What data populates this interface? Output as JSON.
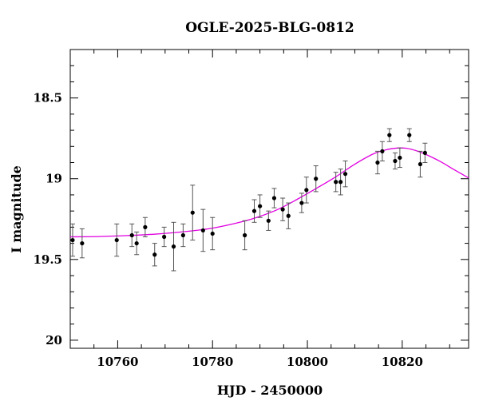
{
  "chart_data": {
    "type": "scatter",
    "title": "OGLE-2025-BLG-0812",
    "xlabel": "HJD - 2450000",
    "ylabel": "I magnitude",
    "xlim": [
      10750,
      10834
    ],
    "ylim": [
      20.05,
      18.2
    ],
    "y_inverted": true,
    "xticks": [
      10760,
      10780,
      10800,
      10820
    ],
    "yticks": [
      18.5,
      19,
      19.5,
      20
    ],
    "ytick_labels": [
      "18.5",
      "19",
      "19.5",
      "20"
    ],
    "grid": false,
    "points": [
      {
        "x": 10750.5,
        "y": 19.38,
        "err": 0.1
      },
      {
        "x": 10752.5,
        "y": 19.4,
        "err": 0.09
      },
      {
        "x": 10759.8,
        "y": 19.38,
        "err": 0.1
      },
      {
        "x": 10763.0,
        "y": 19.35,
        "err": 0.07
      },
      {
        "x": 10764.0,
        "y": 19.4,
        "err": 0.07
      },
      {
        "x": 10765.8,
        "y": 19.3,
        "err": 0.06
      },
      {
        "x": 10767.8,
        "y": 19.47,
        "err": 0.07
      },
      {
        "x": 10769.8,
        "y": 19.36,
        "err": 0.06
      },
      {
        "x": 10771.8,
        "y": 19.42,
        "err": 0.15
      },
      {
        "x": 10773.8,
        "y": 19.35,
        "err": 0.07
      },
      {
        "x": 10775.8,
        "y": 19.21,
        "err": 0.17
      },
      {
        "x": 10778.0,
        "y": 19.32,
        "err": 0.13
      },
      {
        "x": 10780.0,
        "y": 19.34,
        "err": 0.1
      },
      {
        "x": 10786.8,
        "y": 19.35,
        "err": 0.09
      },
      {
        "x": 10788.8,
        "y": 19.2,
        "err": 0.07
      },
      {
        "x": 10790.0,
        "y": 19.17,
        "err": 0.07
      },
      {
        "x": 10791.8,
        "y": 19.26,
        "err": 0.06
      },
      {
        "x": 10793.0,
        "y": 19.12,
        "err": 0.06
      },
      {
        "x": 10794.8,
        "y": 19.19,
        "err": 0.07
      },
      {
        "x": 10796.0,
        "y": 19.23,
        "err": 0.08
      },
      {
        "x": 10798.8,
        "y": 19.15,
        "err": 0.06
      },
      {
        "x": 10799.8,
        "y": 19.07,
        "err": 0.08
      },
      {
        "x": 10801.8,
        "y": 19.0,
        "err": 0.08
      },
      {
        "x": 10806.0,
        "y": 19.02,
        "err": 0.06
      },
      {
        "x": 10807.0,
        "y": 19.02,
        "err": 0.08
      },
      {
        "x": 10808.0,
        "y": 18.97,
        "err": 0.08
      },
      {
        "x": 10814.8,
        "y": 18.9,
        "err": 0.07
      },
      {
        "x": 10815.8,
        "y": 18.83,
        "err": 0.06
      },
      {
        "x": 10817.3,
        "y": 18.73,
        "err": 0.04
      },
      {
        "x": 10818.5,
        "y": 18.89,
        "err": 0.05
      },
      {
        "x": 10819.5,
        "y": 18.87,
        "err": 0.06
      },
      {
        "x": 10821.5,
        "y": 18.73,
        "err": 0.04
      },
      {
        "x": 10823.8,
        "y": 18.91,
        "err": 0.08
      },
      {
        "x": 10824.8,
        "y": 18.84,
        "err": 0.06
      }
    ],
    "model_curve": {
      "color": "#e000e0",
      "x": [
        10750,
        10756,
        10762,
        10768,
        10774,
        10780,
        10786,
        10790,
        10794,
        10798,
        10802,
        10806,
        10810,
        10814,
        10817,
        10819,
        10821,
        10823,
        10825,
        10828,
        10831,
        10834
      ],
      "y": [
        19.36,
        19.358,
        19.352,
        19.343,
        19.328,
        19.306,
        19.268,
        19.233,
        19.187,
        19.125,
        19.058,
        18.988,
        18.91,
        18.845,
        18.818,
        18.81,
        18.812,
        18.827,
        18.85,
        18.893,
        18.945,
        18.995
      ]
    },
    "colors": {
      "points": "#000000",
      "errorbars": "#555555",
      "model": "#e000e0",
      "frame": "#000000"
    }
  }
}
